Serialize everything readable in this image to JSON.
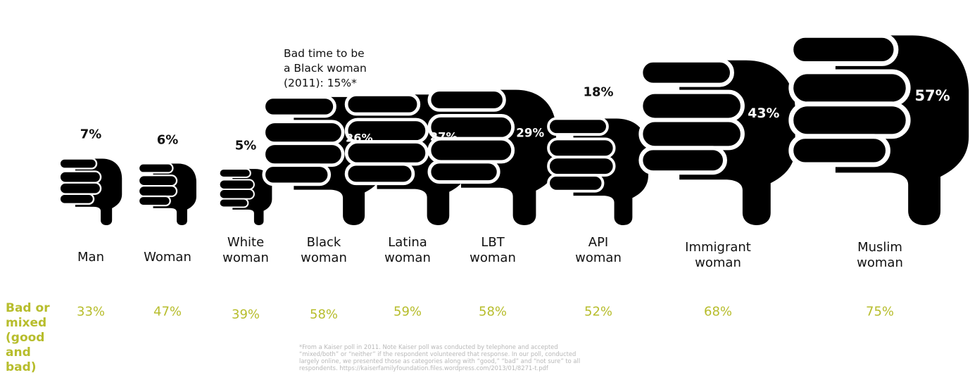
{
  "chart_data": {
    "type": "pictograph",
    "title": "",
    "categories": [
      "Man",
      "Woman",
      "White woman",
      "Black woman",
      "Latina woman",
      "LBT woman",
      "API woman",
      "Immigrant woman",
      "Muslim woman"
    ],
    "category_lines": [
      [
        "Man"
      ],
      [
        "Woman"
      ],
      [
        "White",
        "woman"
      ],
      [
        "Black",
        "woman"
      ],
      [
        "Latina",
        "woman"
      ],
      [
        "LBT",
        "woman"
      ],
      [
        "API",
        "woman"
      ],
      [
        "Immigrant",
        "woman"
      ],
      [
        "Muslim",
        "woman"
      ]
    ],
    "series": [
      {
        "name": "",
        "values": [
          7,
          6,
          5,
          26,
          27,
          29,
          18,
          43,
          57
        ],
        "labels": [
          "7%",
          "6%",
          "5%",
          "26%",
          "27%",
          "29%",
          "18%",
          "43%",
          "57%"
        ]
      },
      {
        "name": "Bad or mixed (good and bad)",
        "values": [
          33,
          47,
          39,
          58,
          59,
          58,
          52,
          68,
          75
        ],
        "labels": [
          "33%",
          "47%",
          "39%",
          "58%",
          "59%",
          "58%",
          "52%",
          "68%",
          "75%"
        ]
      }
    ],
    "mixed_title_lines": [
      "Bad or",
      "mixed",
      "(good",
      "and",
      "bad)"
    ],
    "annotation_lines": [
      "Bad time to be",
      "a Black woman",
      "(2011): 15%*"
    ],
    "footnote_lines": [
      "*From a Kaiser poll in 2011. Note Kaiser poll was conducted by telephone and accepted",
      "“mixed/both” or “neither” if the respondent volunteered that response. In our poll, conducted",
      "largely online, we presented those as categories along with “good,” “bad” and “not sure” to all",
      "respondents.  https://kaiserfamilyfoundation.files.wordpress.com/2013/01/8271-t.pdf"
    ],
    "icon": "thumbs-down-icon",
    "colors": {
      "icon": "#000000",
      "mixed": "#b7bd2c",
      "footnote": "#b8b8b8"
    }
  }
}
